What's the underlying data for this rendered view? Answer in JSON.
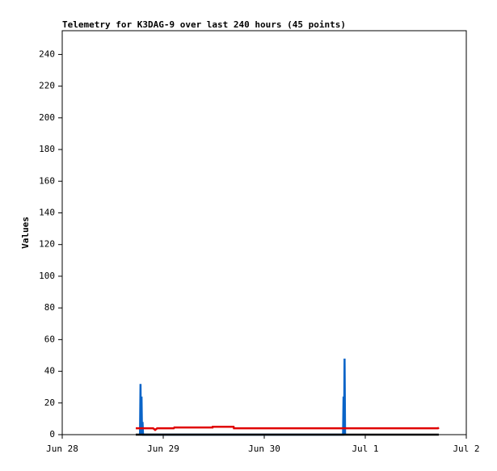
{
  "chart_data": {
    "type": "line",
    "title": "Telemetry for K3DAG-9 over last 240 hours (45 points)",
    "ylabel": "Values",
    "xlim": [
      0,
      4
    ],
    "xticks": [
      {
        "value": 0,
        "label": "Jun 28"
      },
      {
        "value": 1,
        "label": "Jun 29"
      },
      {
        "value": 2,
        "label": "Jun 30"
      },
      {
        "value": 3,
        "label": "Jul 1"
      },
      {
        "value": 4,
        "label": "Jul 2"
      }
    ],
    "ylim": [
      0,
      255
    ],
    "yticks": [
      0,
      20,
      40,
      60,
      80,
      100,
      120,
      140,
      160,
      180,
      200,
      220,
      240
    ],
    "series": [
      {
        "color": "#0a64c8",
        "x": [
          0.77,
          0.775,
          0.78,
          0.785,
          0.79,
          0.795,
          0.8,
          2.78,
          2.785,
          2.79,
          2.795,
          2.8
        ],
        "values": [
          0,
          32,
          0,
          24,
          0,
          8,
          0,
          0,
          24,
          0,
          48,
          0
        ]
      },
      {
        "color": "#e00000",
        "x": [
          0.728,
          0.9,
          0.92,
          0.94,
          1.104,
          1.11,
          1.488,
          1.49,
          1.696,
          1.7,
          3.72,
          3.728
        ],
        "values": [
          4,
          4,
          3,
          4,
          4,
          4.5,
          4.5,
          5,
          5,
          4,
          4,
          4.5
        ]
      },
      {
        "color": "#000000",
        "x": [
          0.728,
          3.728
        ],
        "values": [
          0,
          0
        ]
      }
    ]
  }
}
